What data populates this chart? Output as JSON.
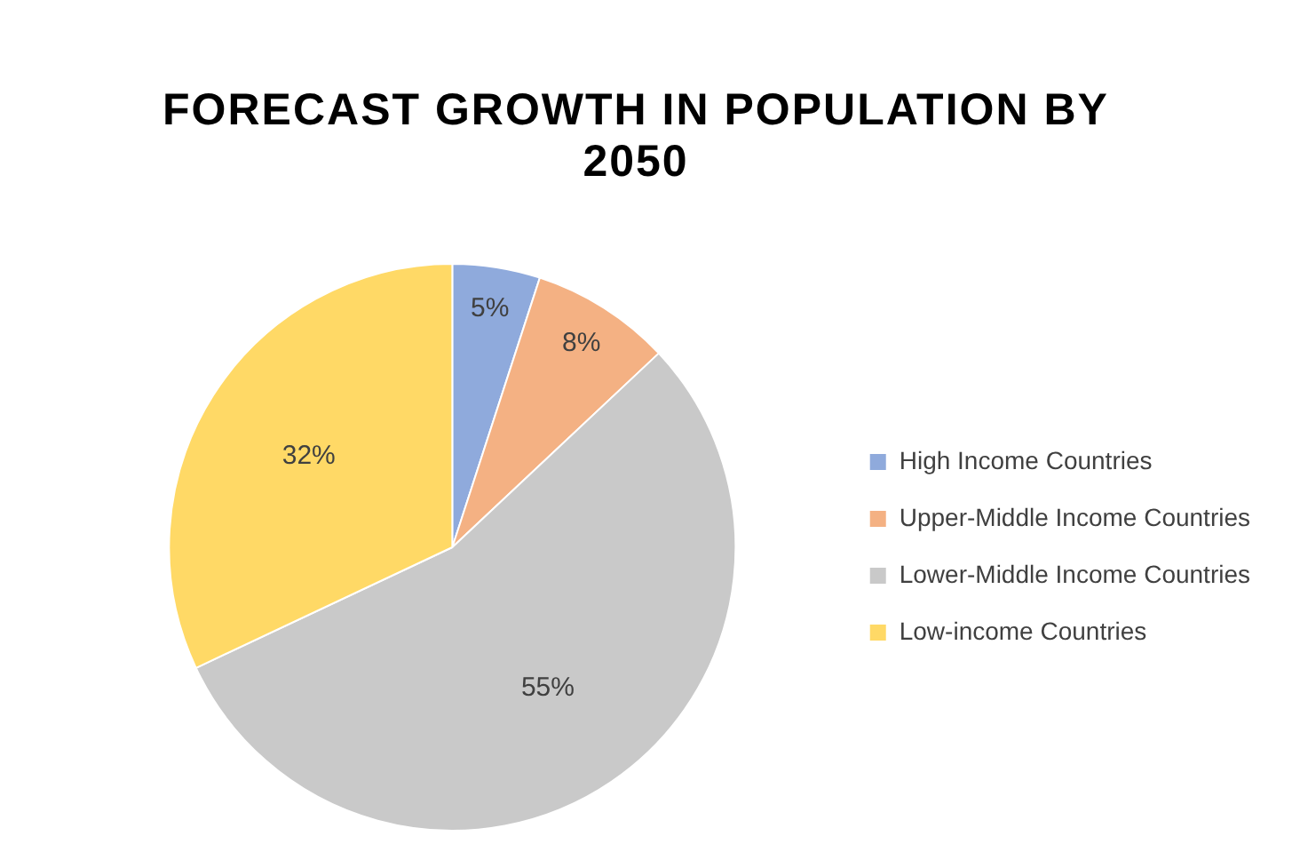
{
  "chart_data": {
    "type": "pie",
    "title": "FORECAST GROWTH IN POPULATION BY 2050",
    "categories": [
      "High Income Countries",
      "Upper-Middle Income Countries",
      "Lower-Middle Income Countries",
      "Low-income Countries"
    ],
    "values": [
      5,
      8,
      55,
      32
    ],
    "colors": [
      "#8faadc",
      "#f4b183",
      "#c9c9c9",
      "#ffd966"
    ],
    "value_labels": [
      "5%",
      "8%",
      "55%",
      "32%"
    ],
    "legend": "right"
  }
}
